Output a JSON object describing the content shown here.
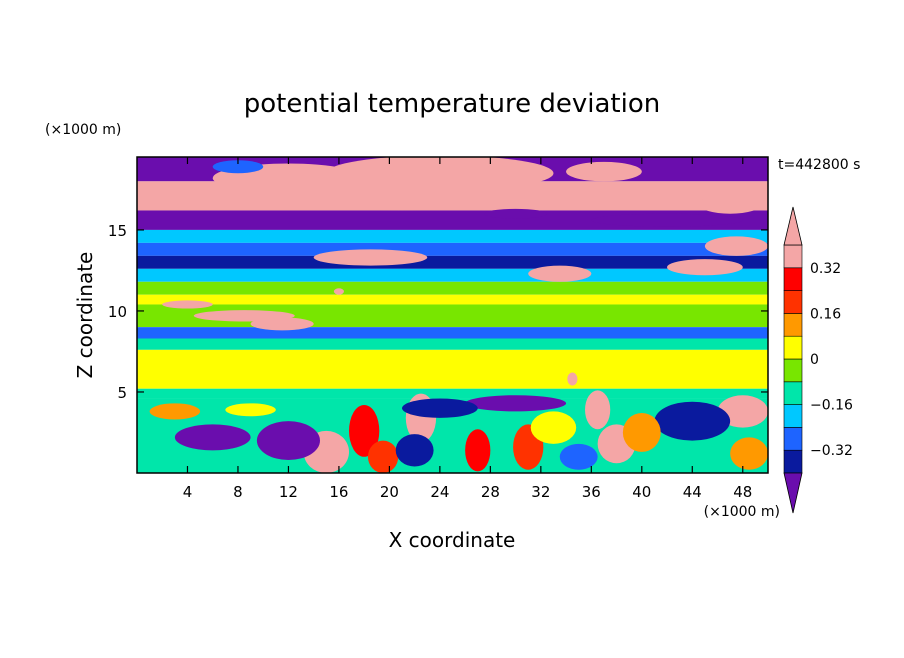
{
  "chart_data": {
    "type": "heatmap",
    "title": "potential temperature deviation",
    "xlabel": "X coordinate",
    "ylabel": "Z coordinate",
    "x_unit": "(×1000 m)",
    "y_unit": "(×1000 m)",
    "time_label": "t=442800 s",
    "xlim": [
      0,
      50
    ],
    "ylim": [
      0,
      19.5
    ],
    "x_ticks": [
      "4",
      "8",
      "12",
      "16",
      "20",
      "24",
      "28",
      "32",
      "36",
      "40",
      "44",
      "48"
    ],
    "y_ticks": [
      "5",
      "10",
      "15"
    ],
    "colorbar": {
      "levels": [
        -0.4,
        -0.32,
        -0.24,
        -0.16,
        -0.08,
        0,
        0.08,
        0.16,
        0.24,
        0.32,
        0.4
      ],
      "colors": [
        "#6a0dad",
        "#0a1a9e",
        "#1e64ff",
        "#00c8ff",
        "#00e6aa",
        "#78e600",
        "#ffff00",
        "#ff9900",
        "#ff3200",
        "#ff0000",
        "#f4a6a6",
        "#f4a6a6"
      ],
      "under_color": "#6a0dad",
      "over_color": "#f4a6a6",
      "tick_labels": [
        "0.32",
        "0.16",
        "0",
        "−0.16",
        "−0.32"
      ]
    },
    "bands": [
      {
        "z0": 18.0,
        "z1": 19.5,
        "value": -0.5
      },
      {
        "z0": 16.2,
        "z1": 18.0,
        "value": 0.5
      },
      {
        "z0": 15.0,
        "z1": 16.2,
        "value": -0.45
      },
      {
        "z0": 14.2,
        "z1": 15.0,
        "value": -0.2
      },
      {
        "z0": 13.4,
        "z1": 14.2,
        "value": -0.3
      },
      {
        "z0": 12.6,
        "z1": 13.4,
        "value": -0.35
      },
      {
        "z0": 11.8,
        "z1": 12.6,
        "value": -0.2
      },
      {
        "z0": 11.0,
        "z1": 11.8,
        "value": -0.05
      },
      {
        "z0": 10.4,
        "z1": 11.0,
        "value": 0.02
      },
      {
        "z0": 9.0,
        "z1": 10.4,
        "value": -0.05
      },
      {
        "z0": 8.3,
        "z1": 9.0,
        "value": -0.25
      },
      {
        "z0": 7.6,
        "z1": 8.3,
        "value": -0.1
      },
      {
        "z0": 5.2,
        "z1": 7.6,
        "value": 0.02
      },
      {
        "z0": 4.6,
        "z1": 5.2,
        "value": -0.1
      },
      {
        "z0": 0.0,
        "z1": 4.6,
        "value": -0.15
      }
    ],
    "blobs": [
      {
        "x": 12,
        "z": 18.2,
        "rx": 6,
        "rz": 0.9,
        "value": 0.5
      },
      {
        "x": 24,
        "z": 18.5,
        "rx": 9,
        "rz": 1.1,
        "value": 0.5
      },
      {
        "x": 21,
        "z": 17.2,
        "rx": 8,
        "rz": 1.0,
        "value": 0.5
      },
      {
        "x": 37,
        "z": 18.6,
        "rx": 3,
        "rz": 0.6,
        "value": 0.5
      },
      {
        "x": 47,
        "z": 16.6,
        "rx": 2.5,
        "rz": 0.6,
        "value": 0.5
      },
      {
        "x": 47.5,
        "z": 14.0,
        "rx": 2.5,
        "rz": 0.6,
        "value": 0.5
      },
      {
        "x": 45,
        "z": 12.7,
        "rx": 3,
        "rz": 0.5,
        "value": 0.5
      },
      {
        "x": 33.5,
        "z": 12.3,
        "rx": 2.5,
        "rz": 0.5,
        "value": 0.5
      },
      {
        "x": 18.5,
        "z": 13.3,
        "rx": 4.5,
        "rz": 0.5,
        "value": 0.5
      },
      {
        "x": 8.5,
        "z": 9.7,
        "rx": 4,
        "rz": 0.35,
        "value": 0.5
      },
      {
        "x": 11.5,
        "z": 9.2,
        "rx": 2.5,
        "rz": 0.4,
        "value": 0.5
      },
      {
        "x": 4,
        "z": 10.4,
        "rx": 2,
        "rz": 0.25,
        "value": 0.5
      },
      {
        "x": 16,
        "z": 11.2,
        "rx": 0.4,
        "rz": 0.2,
        "value": 0.5
      },
      {
        "x": 22.5,
        "z": 3.4,
        "rx": 1.2,
        "rz": 1.5,
        "value": 0.5
      },
      {
        "x": 36.5,
        "z": 3.9,
        "rx": 1.0,
        "rz": 1.2,
        "value": 0.5
      },
      {
        "x": 38,
        "z": 1.8,
        "rx": 1.5,
        "rz": 1.2,
        "value": 0.5
      },
      {
        "x": 15,
        "z": 1.3,
        "rx": 1.8,
        "rz": 1.3,
        "value": 0.5
      },
      {
        "x": 48,
        "z": 3.8,
        "rx": 2.0,
        "rz": 1.0,
        "value": 0.5
      },
      {
        "x": 34.5,
        "z": 5.8,
        "rx": 0.4,
        "rz": 0.4,
        "value": 0.4
      },
      {
        "x": 6,
        "z": 2.2,
        "rx": 3,
        "rz": 0.8,
        "value": -0.5
      },
      {
        "x": 12,
        "z": 2.0,
        "rx": 2.5,
        "rz": 1.2,
        "value": -0.45
      },
      {
        "x": 30,
        "z": 4.3,
        "rx": 4,
        "rz": 0.5,
        "value": -0.45
      },
      {
        "x": 24,
        "z": 4.0,
        "rx": 3,
        "rz": 0.6,
        "value": -0.4
      },
      {
        "x": 44,
        "z": 3.2,
        "rx": 3,
        "rz": 1.2,
        "value": -0.35
      },
      {
        "x": 18,
        "z": 2.6,
        "rx": 1.2,
        "rz": 1.6,
        "value": 0.3
      },
      {
        "x": 19.5,
        "z": 1.0,
        "rx": 1.2,
        "rz": 1.0,
        "value": 0.2
      },
      {
        "x": 27,
        "z": 1.4,
        "rx": 1.0,
        "rz": 1.3,
        "value": 0.25
      },
      {
        "x": 31,
        "z": 1.6,
        "rx": 1.2,
        "rz": 1.4,
        "value": 0.2
      },
      {
        "x": 40,
        "z": 2.5,
        "rx": 1.5,
        "rz": 1.2,
        "value": 0.12
      },
      {
        "x": 3,
        "z": 3.8,
        "rx": 2,
        "rz": 0.5,
        "value": 0.1
      },
      {
        "x": 9,
        "z": 3.9,
        "rx": 2,
        "rz": 0.4,
        "value": 0.05
      },
      {
        "x": 33,
        "z": 2.8,
        "rx": 1.8,
        "rz": 1.0,
        "value": 0.05
      },
      {
        "x": 22,
        "z": 1.4,
        "rx": 1.5,
        "rz": 1.0,
        "value": -0.35
      },
      {
        "x": 35,
        "z": 1.0,
        "rx": 1.5,
        "rz": 0.8,
        "value": -0.3
      },
      {
        "x": 48.5,
        "z": 1.2,
        "rx": 1.5,
        "rz": 1.0,
        "value": 0.1
      },
      {
        "x": 42,
        "z": 15.6,
        "rx": 6,
        "rz": 0.4,
        "value": -0.45
      },
      {
        "x": 8,
        "z": 18.9,
        "rx": 2,
        "rz": 0.4,
        "value": -0.3
      },
      {
        "x": 30,
        "z": 16.0,
        "rx": 2.5,
        "rz": 0.3,
        "value": -0.45
      }
    ]
  }
}
